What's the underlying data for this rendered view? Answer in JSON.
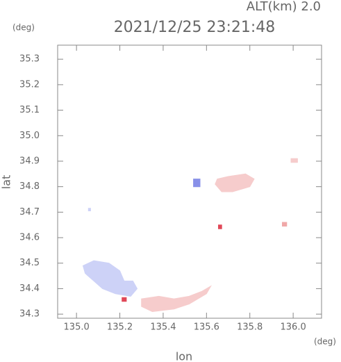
{
  "chart_data": {
    "type": "area",
    "title": "2021/12/25 23:21:48",
    "subtitle": "ALT(km) 2.0",
    "y_unit": "(deg)",
    "x_unit": "(deg)",
    "x_label": "lon",
    "y_label": "lat",
    "xlim": [
      134.913,
      136.131
    ],
    "ylim": [
      34.284,
      35.355
    ],
    "xticks": [
      {
        "value": 135,
        "label": "135.0"
      },
      135.2,
      135.4,
      135.6,
      135.8,
      {
        "value": 136,
        "label": "136.0"
      }
    ],
    "yticks": [
      34.3,
      34.4,
      34.5,
      34.6,
      34.7,
      34.8,
      34.9,
      {
        "value": 35,
        "label": "35.0"
      },
      35.1,
      35.2,
      35.3
    ],
    "series": [
      {
        "color": "#cdd2f7",
        "x": [
          135.03,
          135.08,
          135.15,
          135.2,
          135.22,
          135.26,
          135.28,
          135.25,
          135.18,
          135.12,
          135.08,
          135.04
        ],
        "y": [
          34.49,
          34.51,
          34.5,
          34.47,
          34.43,
          34.43,
          34.4,
          34.37,
          34.38,
          34.4,
          34.43,
          34.46
        ]
      },
      {
        "color": "#f6cccc",
        "x": [
          135.3,
          135.38,
          135.45,
          135.52,
          135.58,
          135.62,
          135.6,
          135.52,
          135.45,
          135.35,
          135.3
        ],
        "y": [
          34.36,
          34.37,
          34.36,
          34.37,
          34.39,
          34.41,
          34.38,
          34.34,
          34.32,
          34.31,
          34.33
        ]
      },
      {
        "color": "#f6cccc",
        "x": [
          135.65,
          135.7,
          135.78,
          135.82,
          135.8,
          135.72,
          135.67,
          135.64
        ],
        "y": [
          34.83,
          34.84,
          34.85,
          34.83,
          34.8,
          34.78,
          34.78,
          34.81
        ]
      },
      {
        "color": "#cdd2f7",
        "x": [
          135.055,
          135.065,
          135.065,
          135.055
        ],
        "y": [
          34.715,
          34.715,
          34.705,
          34.705
        ]
      },
      {
        "color": "#f0a8a8",
        "x": [
          135.95,
          135.97,
          135.97,
          135.95
        ],
        "y": [
          34.66,
          34.66,
          34.645,
          34.645
        ]
      },
      {
        "color": "#f6cccc",
        "x": [
          135.99,
          136.02,
          136.02,
          135.99
        ],
        "y": [
          34.91,
          34.91,
          34.895,
          34.895
        ]
      },
      {
        "color": "#e04858",
        "x": [
          135.21,
          135.23,
          135.23,
          135.21
        ],
        "y": [
          34.365,
          34.365,
          34.35,
          34.35
        ]
      },
      {
        "color": "#e04858",
        "x": [
          135.655,
          135.67,
          135.67,
          135.655
        ],
        "y": [
          34.65,
          34.65,
          34.635,
          34.635
        ]
      },
      {
        "color": "#8890e8",
        "x": [
          135.54,
          135.57,
          135.57,
          135.54
        ],
        "y": [
          34.83,
          34.83,
          34.8,
          34.8
        ]
      }
    ]
  }
}
